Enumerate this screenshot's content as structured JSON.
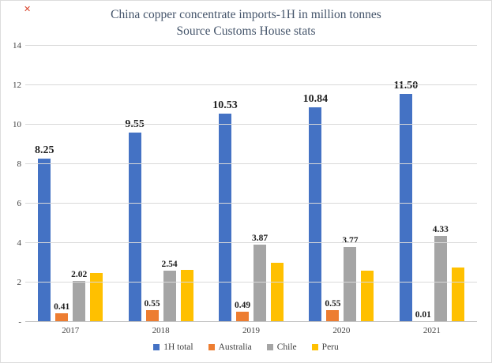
{
  "artifact": {
    "glyph": "✕"
  },
  "chart_data": {
    "type": "bar",
    "title": "China copper concentrate imports-1H in million tonnes",
    "subtitle": "Source Customs House stats",
    "categories": [
      "2017",
      "2018",
      "2019",
      "2020",
      "2021"
    ],
    "series": [
      {
        "name": "1H total",
        "color": "#4472C4",
        "values": [
          8.25,
          9.55,
          10.53,
          10.84,
          11.5
        ],
        "labels": [
          "8.25",
          "9.55",
          "10.53",
          "10.84",
          "11.50"
        ],
        "label_style": "large"
      },
      {
        "name": "Australia",
        "color": "#ED7D31",
        "values": [
          0.41,
          0.55,
          0.49,
          0.55,
          0.01
        ],
        "labels": [
          "0.41",
          "0.55",
          "0.49",
          "0.55",
          "0.01"
        ],
        "label_style": "small"
      },
      {
        "name": "Chile",
        "color": "#A5A5A5",
        "values": [
          2.02,
          2.54,
          3.87,
          3.77,
          4.33
        ],
        "labels": [
          "2.02",
          "2.54",
          "3.87",
          "3.77",
          "4.33"
        ],
        "label_style": "small"
      },
      {
        "name": "Peru",
        "color": "#FFC000",
        "values": [
          2.45,
          2.6,
          2.95,
          2.55,
          2.7
        ],
        "labels": null,
        "label_style": "small"
      }
    ],
    "ylim": [
      0,
      14
    ],
    "ytick_step": 2,
    "ytick_labels": [
      "-",
      "2",
      "4",
      "6",
      "8",
      "10",
      "12",
      "14"
    ],
    "grid": true,
    "legend_position": "bottom",
    "colors": {
      "gridline": "#d9d9d9",
      "axis_line": "#c3c3c3",
      "title_text": "#44546A",
      "label_text": "#1f1f1f",
      "tick_text": "#404040"
    }
  }
}
